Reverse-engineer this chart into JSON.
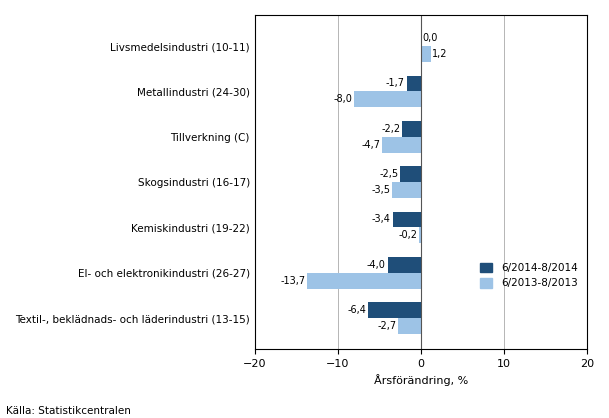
{
  "categories": [
    "Textil-, beklädnads- och läderindustri (13-15)",
    "El- och elektronikindustri (26-27)",
    "Kemiskindustri (19-22)",
    "Skogsindustri (16-17)",
    "Tillverkning (C)",
    "Metallindustri (24-30)",
    "Livsmedelsindustri (10-11)"
  ],
  "series1_label": "6/2014-8/2014",
  "series2_label": "6/2013-8/2013",
  "series1_values": [
    -6.4,
    -4.0,
    -3.4,
    -2.5,
    -2.2,
    -1.7,
    0.0
  ],
  "series2_values": [
    -2.7,
    -13.7,
    -0.2,
    -3.5,
    -4.7,
    -8.0,
    1.2
  ],
  "series1_labels": [
    "-6,4",
    "-4,0",
    "-3,4",
    "-2,5",
    "-2,2",
    "-1,7",
    "0,0"
  ],
  "series2_labels": [
    "-2,7",
    "-13,7",
    "-0,2",
    "-3,5",
    "-4,7",
    "-8,0",
    "1,2"
  ],
  "series1_color": "#1F4E79",
  "series2_color": "#9DC3E6",
  "xlim": [
    -20,
    20
  ],
  "xticks": [
    -20,
    -10,
    0,
    10,
    20
  ],
  "xlabel": "Årsförändring, %",
  "source": "Källa: Statistikcentralen",
  "bar_height": 0.35,
  "background_color": "#ffffff"
}
